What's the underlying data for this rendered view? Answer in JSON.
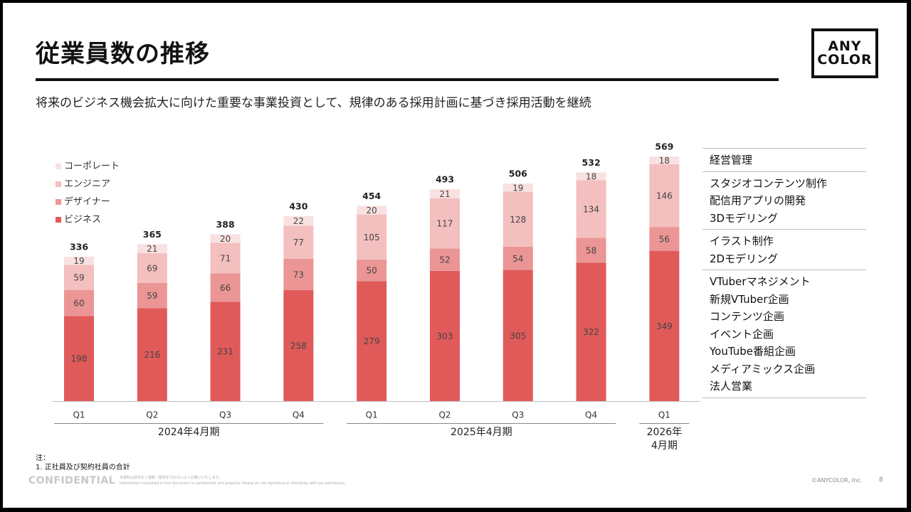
{
  "header": {
    "title": "従業員数の推移",
    "subtitle": "将来のビジネス機会拡大に向けた重要な事業投資として、規律のある採用計画に基づき採用活動を継続",
    "logo_line1": "ANY",
    "logo_line2": "COLOR"
  },
  "side_panel": [
    {
      "items": [
        "経営管理"
      ]
    },
    {
      "items": [
        "スタジオコンテンツ制作",
        "配信用アプリの開発",
        "3Dモデリング"
      ]
    },
    {
      "items": [
        "イラスト制作",
        "2Dモデリング"
      ]
    },
    {
      "items": [
        "VTuberマネジメント",
        "新規VTuber企画",
        "コンテンツ企画",
        "イベント企画",
        "YouTube番組企画",
        "メディアミックス企画",
        "法人営業"
      ]
    }
  ],
  "footer": {
    "note_heading": "注：",
    "note_1": "1. 正社員及び契約社員の合計",
    "confidential": "CONFIDENTIAL",
    "confidential_note_1": "本資料は許可なく複製・配布を行わないようお願いいたします。",
    "confidential_note_2": "Information contained in this document is confidential and property. Please do not reproduce or distribute with our permission.",
    "copyright": "©ANYCOLOR, Inc.",
    "page": "8"
  },
  "chart_data": {
    "type": "bar",
    "stacked": true,
    "categories": [
      "Q1",
      "Q2",
      "Q3",
      "Q4",
      "Q1",
      "Q2",
      "Q3",
      "Q4",
      "Q1"
    ],
    "groups": [
      {
        "label": "2024年4月期",
        "span": [
          0,
          3
        ]
      },
      {
        "label": "2025年4月期",
        "span": [
          4,
          7
        ]
      },
      {
        "label": "2026年\n4月期",
        "span": [
          8,
          8
        ]
      }
    ],
    "series": [
      {
        "name": "ビジネス",
        "color": "#e05a5a",
        "values": [
          198,
          216,
          231,
          258,
          279,
          303,
          305,
          322,
          349
        ]
      },
      {
        "name": "デザイナー",
        "color": "#eb9595",
        "values": [
          60,
          59,
          66,
          73,
          50,
          52,
          54,
          58,
          56
        ]
      },
      {
        "name": "エンジニア",
        "color": "#f4bfbf",
        "values": [
          59,
          69,
          71,
          77,
          105,
          117,
          128,
          134,
          146
        ]
      },
      {
        "name": "コーポレート",
        "color": "#f9e1e1",
        "values": [
          19,
          21,
          20,
          22,
          20,
          21,
          19,
          18,
          18
        ]
      }
    ],
    "totals": [
      336,
      365,
      388,
      430,
      454,
      493,
      506,
      532,
      569
    ],
    "ylim": [
      0,
      569
    ],
    "legend_position": "top-left",
    "grid": false
  }
}
